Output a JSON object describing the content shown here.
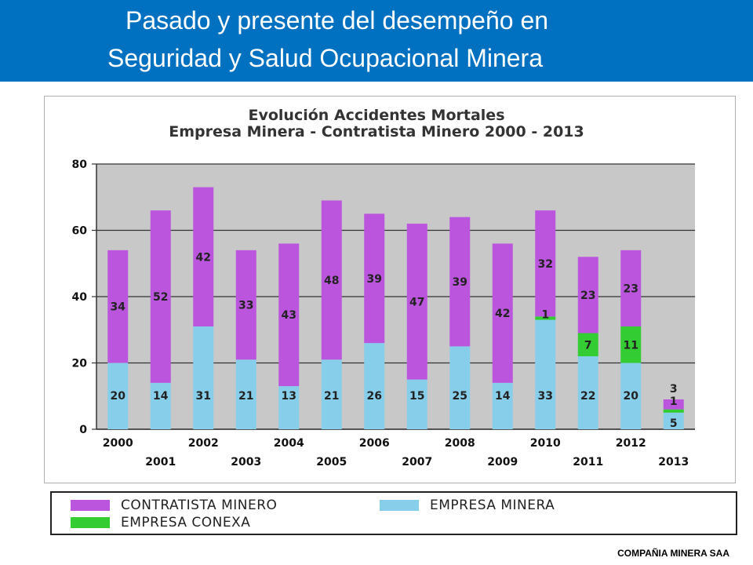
{
  "header": {
    "line1": "Pasado y presente del desempeño en",
    "line2": "Seguridad y Salud Ocupacional Minera"
  },
  "footer": {
    "company": "COMPAÑIA MINERA SAA"
  },
  "colors": {
    "header_bg": "#0070c0",
    "plot_bg": "#c8c8c8",
    "contratista": "#bb55dd",
    "empresa_minera": "#87ceeb",
    "conexa": "#33cc33"
  },
  "chart_data": {
    "type": "bar",
    "stacked": true,
    "title": "Evolución Accidentes Mortales",
    "subtitle": "Empresa Minera - Contratista Minero  2000 - 2013",
    "categories": [
      "2000",
      "2001",
      "2002",
      "2003",
      "2004",
      "2005",
      "2006",
      "2007",
      "2008",
      "2009",
      "2010",
      "2011",
      "2012",
      "2013"
    ],
    "series": [
      {
        "name": "EMPRESA MINERA",
        "values": [
          20,
          14,
          31,
          21,
          13,
          21,
          26,
          15,
          25,
          14,
          33,
          22,
          20,
          5
        ]
      },
      {
        "name": "EMPRESA CONEXA",
        "values": [
          0,
          0,
          0,
          0,
          0,
          0,
          0,
          0,
          0,
          0,
          1,
          7,
          11,
          1
        ]
      },
      {
        "name": "CONTRATISTA MINERO",
        "values": [
          34,
          52,
          42,
          33,
          43,
          48,
          39,
          47,
          39,
          42,
          32,
          23,
          23,
          3
        ]
      }
    ],
    "ylim": [
      0,
      80
    ],
    "yticks": [
      0,
      20,
      40,
      60,
      80
    ],
    "grid": true,
    "legend_position": "bottom"
  }
}
